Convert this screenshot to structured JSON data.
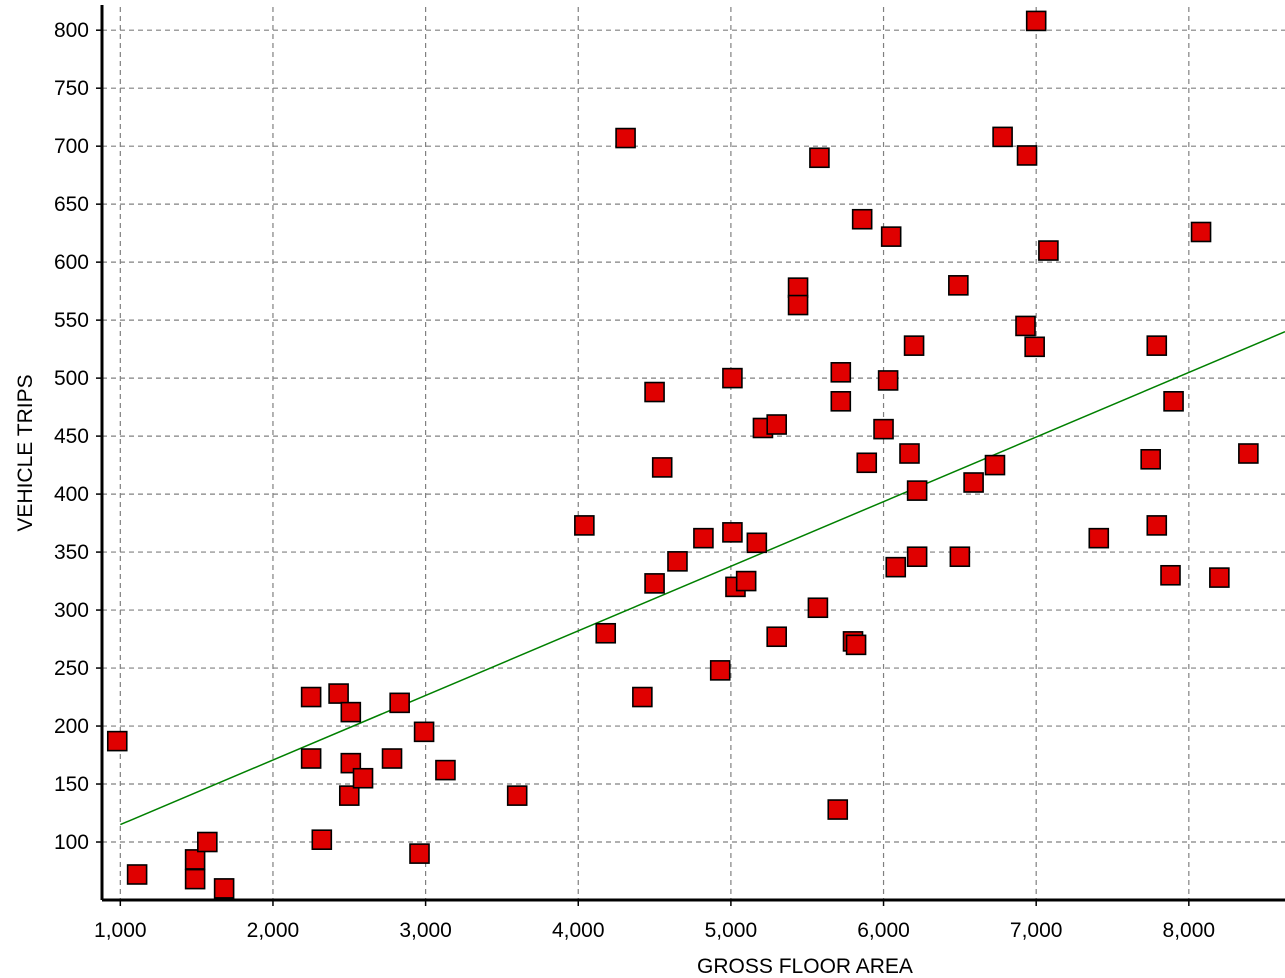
{
  "chart_data": {
    "type": "scatter",
    "title": "",
    "xlabel": "GROSS FLOOR AREA",
    "ylabel": "VEHICLE TRIPS",
    "xlim": [
      880,
      8630
    ],
    "ylim": [
      50,
      820
    ],
    "x_ticks": [
      1000,
      2000,
      3000,
      4000,
      5000,
      6000,
      7000,
      8000
    ],
    "y_ticks": [
      100,
      150,
      200,
      250,
      300,
      350,
      400,
      450,
      500,
      550,
      600,
      650,
      700,
      750,
      800
    ],
    "x_tick_labels": [
      "1,000",
      "2,000",
      "3,000",
      "4,000",
      "5,000",
      "6,000",
      "7,000",
      "8,000"
    ],
    "y_tick_labels": [
      "100",
      "150",
      "200",
      "250",
      "300",
      "350",
      "400",
      "450",
      "500",
      "550",
      "600",
      "650",
      "700",
      "750",
      "800"
    ],
    "grid": true,
    "legend": "none",
    "colors": {
      "marker_fill": "#e00000",
      "marker_edge": "#000000",
      "trend_line": "#008000",
      "grid": "#808080"
    },
    "trend_line": {
      "x": [
        1000,
        8630
      ],
      "y": [
        115,
        540
      ]
    },
    "points": [
      {
        "x": 980,
        "y": 187
      },
      {
        "x": 1110,
        "y": 72
      },
      {
        "x": 1490,
        "y": 85
      },
      {
        "x": 1490,
        "y": 68
      },
      {
        "x": 1570,
        "y": 100
      },
      {
        "x": 1680,
        "y": 60
      },
      {
        "x": 2250,
        "y": 225
      },
      {
        "x": 2250,
        "y": 172
      },
      {
        "x": 2320,
        "y": 102
      },
      {
        "x": 2430,
        "y": 228
      },
      {
        "x": 2510,
        "y": 212
      },
      {
        "x": 2500,
        "y": 140
      },
      {
        "x": 2510,
        "y": 168
      },
      {
        "x": 2590,
        "y": 155
      },
      {
        "x": 2780,
        "y": 172
      },
      {
        "x": 2830,
        "y": 220
      },
      {
        "x": 2960,
        "y": 90
      },
      {
        "x": 2990,
        "y": 195
      },
      {
        "x": 3130,
        "y": 162
      },
      {
        "x": 3600,
        "y": 140
      },
      {
        "x": 4040,
        "y": 373
      },
      {
        "x": 4180,
        "y": 280
      },
      {
        "x": 4310,
        "y": 707
      },
      {
        "x": 4420,
        "y": 225
      },
      {
        "x": 4500,
        "y": 488
      },
      {
        "x": 4500,
        "y": 323
      },
      {
        "x": 4550,
        "y": 423
      },
      {
        "x": 4650,
        "y": 342
      },
      {
        "x": 4820,
        "y": 362
      },
      {
        "x": 4930,
        "y": 248
      },
      {
        "x": 5010,
        "y": 500
      },
      {
        "x": 5010,
        "y": 367
      },
      {
        "x": 5030,
        "y": 320
      },
      {
        "x": 5100,
        "y": 325
      },
      {
        "x": 5170,
        "y": 358
      },
      {
        "x": 5210,
        "y": 457
      },
      {
        "x": 5300,
        "y": 460
      },
      {
        "x": 5300,
        "y": 277
      },
      {
        "x": 5440,
        "y": 578
      },
      {
        "x": 5440,
        "y": 563
      },
      {
        "x": 5570,
        "y": 302
      },
      {
        "x": 5580,
        "y": 690
      },
      {
        "x": 5700,
        "y": 128
      },
      {
        "x": 5720,
        "y": 505
      },
      {
        "x": 5720,
        "y": 480
      },
      {
        "x": 5800,
        "y": 273
      },
      {
        "x": 5820,
        "y": 270
      },
      {
        "x": 5860,
        "y": 637
      },
      {
        "x": 5890,
        "y": 427
      },
      {
        "x": 6000,
        "y": 456
      },
      {
        "x": 6030,
        "y": 498
      },
      {
        "x": 6050,
        "y": 622
      },
      {
        "x": 6080,
        "y": 337
      },
      {
        "x": 6170,
        "y": 435
      },
      {
        "x": 6200,
        "y": 528
      },
      {
        "x": 6220,
        "y": 403
      },
      {
        "x": 6220,
        "y": 346
      },
      {
        "x": 6490,
        "y": 580
      },
      {
        "x": 6500,
        "y": 346
      },
      {
        "x": 6590,
        "y": 410
      },
      {
        "x": 6730,
        "y": 425
      },
      {
        "x": 6780,
        "y": 708
      },
      {
        "x": 6930,
        "y": 545
      },
      {
        "x": 6940,
        "y": 692
      },
      {
        "x": 6990,
        "y": 527
      },
      {
        "x": 7000,
        "y": 808
      },
      {
        "x": 7080,
        "y": 610
      },
      {
        "x": 7410,
        "y": 362
      },
      {
        "x": 7750,
        "y": 430
      },
      {
        "x": 7790,
        "y": 528
      },
      {
        "x": 7790,
        "y": 373
      },
      {
        "x": 7880,
        "y": 330
      },
      {
        "x": 7900,
        "y": 480
      },
      {
        "x": 8080,
        "y": 626
      },
      {
        "x": 8200,
        "y": 328
      },
      {
        "x": 8390,
        "y": 435
      }
    ]
  }
}
